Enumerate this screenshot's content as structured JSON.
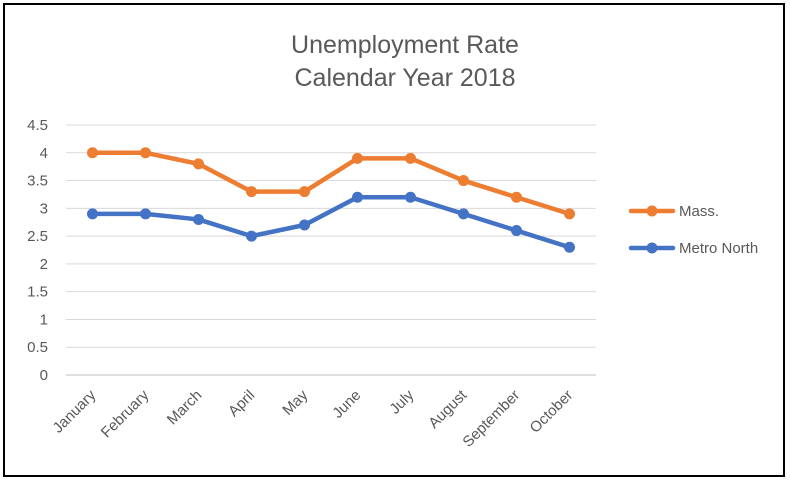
{
  "chart_data": {
    "type": "line",
    "title": [
      "Unemployment Rate",
      "Calendar Year 2018"
    ],
    "xlabel": "",
    "ylabel": "",
    "categories": [
      "January",
      "February",
      "March",
      "April",
      "May",
      "June",
      "July",
      "August",
      "September",
      "October"
    ],
    "ylim": [
      0,
      4.5
    ],
    "yticks": [
      "0",
      "0.5",
      "1",
      "1.5",
      "2",
      "2.5",
      "3",
      "3.5",
      "4",
      "4.5"
    ],
    "grid": true,
    "legend_position": "right",
    "series": [
      {
        "name": "Mass.",
        "color": "#ED7D31",
        "values": [
          4.0,
          4.0,
          3.8,
          3.3,
          3.3,
          3.9,
          3.9,
          3.5,
          3.2,
          2.9
        ]
      },
      {
        "name": "Metro North",
        "color": "#4472C4",
        "values": [
          2.9,
          2.9,
          2.8,
          2.5,
          2.7,
          3.2,
          3.2,
          2.9,
          2.6,
          2.3
        ]
      }
    ]
  }
}
